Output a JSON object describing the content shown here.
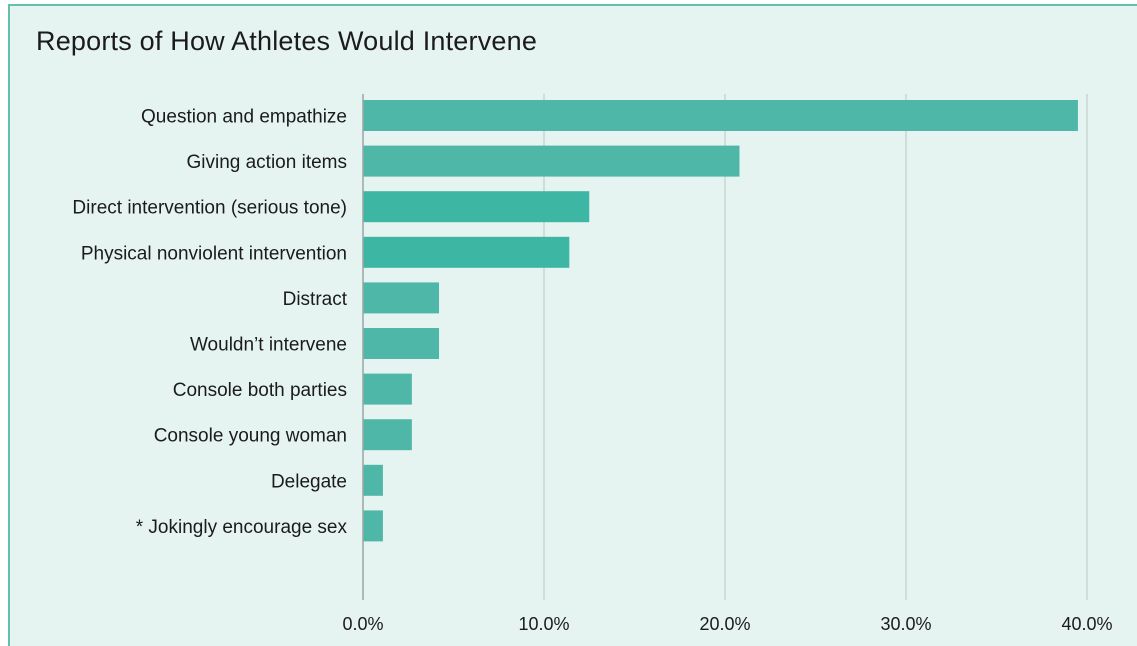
{
  "chart_data": {
    "type": "bar",
    "orientation": "horizontal",
    "title": "Reports of How Athletes Would Intervene",
    "categories": [
      "Question and empathize",
      "Giving action items",
      "Direct intervention (serious tone)",
      "Physical nonviolent intervention",
      "Distract",
      "Wouldn’t intervene",
      "Console both parties",
      "Console young woman",
      "Delegate",
      "* Jokingly encourage sex"
    ],
    "values": [
      39.5,
      20.8,
      12.5,
      11.4,
      4.2,
      4.2,
      2.7,
      2.7,
      1.1,
      1.1
    ],
    "bar_colors": [
      "#4fb7a8",
      "#4fb7a8",
      "#3db6a4",
      "#3db6a4",
      "#4fb7a8",
      "#4fb7a8",
      "#4fb7a8",
      "#4fb7a8",
      "#4fb7a8",
      "#4fb7a8"
    ],
    "xlim": [
      0,
      40
    ],
    "xticks": [
      0,
      10,
      20,
      30,
      40
    ],
    "xtick_labels": [
      "0.0%",
      "10.0%",
      "20.0%",
      "30.0%",
      "40.0%"
    ],
    "grid": "vertical",
    "xlabel": "",
    "ylabel": ""
  },
  "colors": {
    "background": "#e6f4f1",
    "border": "#5fc1ae",
    "gridline": "#b9c8c4",
    "axis": "#9aa5a2"
  }
}
